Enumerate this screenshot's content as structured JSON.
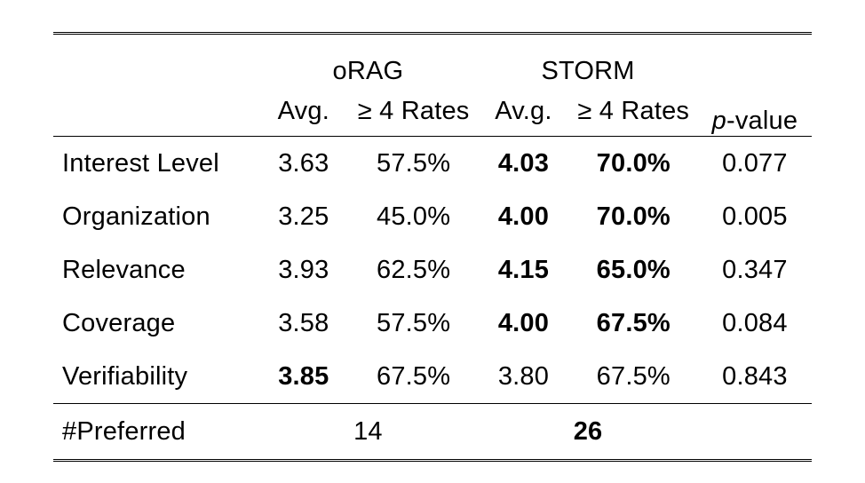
{
  "table": {
    "type": "table",
    "background_color": "#ffffff",
    "text_color": "#000000",
    "rule_color": "#000000",
    "font_family": "Helvetica Neue",
    "header_fontsize": 29,
    "body_fontsize": 29,
    "double_rule_width": 3.5,
    "single_rule_width": 1.5,
    "groups": {
      "orag": {
        "label": "oRAG"
      },
      "storm": {
        "label": "STORM"
      }
    },
    "pvalue_header": {
      "p": "p",
      "suffix": "-value"
    },
    "sub_headers": {
      "avg": "Avg.",
      "rates": "≥ 4 Rates",
      "avg2": "Av.g.",
      "rates2": "≥ 4 Rates"
    },
    "rows": [
      {
        "label": "Interest Level",
        "orag_avg": "3.63",
        "orag_avg_bold": false,
        "orag_rate": "57.5%",
        "orag_rate_bold": false,
        "storm_avg": "4.03",
        "storm_avg_bold": true,
        "storm_rate": "70.0%",
        "storm_rate_bold": true,
        "pvalue": "0.077"
      },
      {
        "label": "Organization",
        "orag_avg": "3.25",
        "orag_avg_bold": false,
        "orag_rate": "45.0%",
        "orag_rate_bold": false,
        "storm_avg": "4.00",
        "storm_avg_bold": true,
        "storm_rate": "70.0%",
        "storm_rate_bold": true,
        "pvalue": "0.005"
      },
      {
        "label": "Relevance",
        "orag_avg": "3.93",
        "orag_avg_bold": false,
        "orag_rate": "62.5%",
        "orag_rate_bold": false,
        "storm_avg": "4.15",
        "storm_avg_bold": true,
        "storm_rate": "65.0%",
        "storm_rate_bold": true,
        "pvalue": "0.347"
      },
      {
        "label": "Coverage",
        "orag_avg": "3.58",
        "orag_avg_bold": false,
        "orag_rate": "57.5%",
        "orag_rate_bold": false,
        "storm_avg": "4.00",
        "storm_avg_bold": true,
        "storm_rate": "67.5%",
        "storm_rate_bold": true,
        "pvalue": "0.084"
      },
      {
        "label": "Verifiability",
        "orag_avg": "3.85",
        "orag_avg_bold": true,
        "orag_rate": "67.5%",
        "orag_rate_bold": false,
        "storm_avg": "3.80",
        "storm_avg_bold": false,
        "storm_rate": "67.5%",
        "storm_rate_bold": false,
        "pvalue": "0.843"
      }
    ],
    "footer": {
      "label": "#Preferred",
      "orag_count": "14",
      "orag_bold": false,
      "storm_count": "26",
      "storm_bold": true
    }
  }
}
